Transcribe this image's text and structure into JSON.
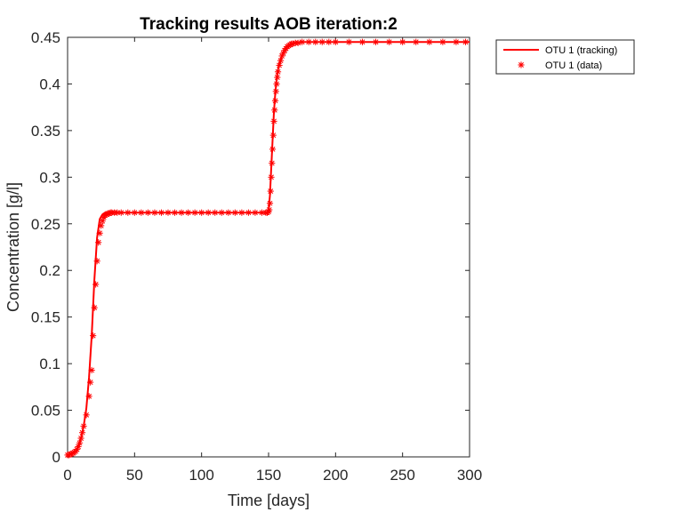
{
  "chart_data": {
    "type": "line",
    "title": "Tracking results AOB iteration:2",
    "xlabel": "Time [days]",
    "ylabel": "Concentration [g/l]",
    "xlim": [
      0,
      300
    ],
    "ylim": [
      0,
      0.45
    ],
    "xticks": [
      0,
      50,
      100,
      150,
      200,
      250,
      300
    ],
    "yticks": [
      0,
      0.05,
      0.1,
      0.15,
      0.2,
      0.25,
      0.3,
      0.35,
      0.4,
      0.45
    ],
    "xtick_labels": [
      "0",
      "50",
      "100",
      "150",
      "200",
      "250",
      "300"
    ],
    "ytick_labels": [
      "0",
      "0.05",
      "0.1",
      "0.15",
      "0.2",
      "0.25",
      "0.3",
      "0.35",
      "0.4",
      "0.45"
    ],
    "grid": false,
    "legend_position": "outside-top-right",
    "series": [
      {
        "name": "OTU 1 (tracking)",
        "style": "line",
        "color": "#ff0000",
        "x": [
          0,
          4,
          6,
          8,
          10,
          12,
          14,
          16,
          18,
          20,
          22,
          24,
          26,
          28,
          30,
          32,
          40,
          60,
          100,
          140,
          149,
          150,
          151,
          152,
          153,
          154,
          155,
          156,
          157,
          158,
          160,
          162,
          164,
          166,
          168,
          170,
          175,
          180,
          200,
          250,
          300
        ],
        "y": [
          0.002,
          0.004,
          0.006,
          0.011,
          0.02,
          0.033,
          0.052,
          0.085,
          0.13,
          0.19,
          0.235,
          0.255,
          0.26,
          0.262,
          0.262,
          0.262,
          0.262,
          0.262,
          0.262,
          0.262,
          0.262,
          0.265,
          0.28,
          0.31,
          0.34,
          0.37,
          0.39,
          0.405,
          0.415,
          0.422,
          0.43,
          0.436,
          0.44,
          0.442,
          0.443,
          0.444,
          0.445,
          0.445,
          0.445,
          0.445,
          0.445
        ]
      },
      {
        "name": "OTU 1 (data)",
        "style": "markers",
        "marker": "asterisk",
        "color": "#ff0000",
        "x": [
          0,
          1,
          2,
          3,
          4,
          5,
          6,
          7,
          8,
          9,
          10,
          11,
          12,
          14,
          16,
          17,
          18,
          19,
          20,
          21,
          22,
          23,
          24,
          25,
          26,
          27,
          28,
          29,
          30,
          31,
          32,
          33,
          35,
          37,
          40,
          45,
          50,
          55,
          60,
          65,
          70,
          75,
          80,
          85,
          90,
          95,
          100,
          105,
          110,
          115,
          120,
          125,
          130,
          135,
          140,
          145,
          148,
          149,
          150,
          150.5,
          151,
          151.5,
          152,
          152.5,
          153,
          153.5,
          154,
          154.5,
          155,
          155.5,
          156,
          156.5,
          157,
          158,
          159,
          160,
          161,
          162,
          163,
          164,
          165,
          166,
          167,
          168,
          170,
          172,
          175,
          180,
          185,
          190,
          195,
          200,
          210,
          220,
          230,
          240,
          250,
          260,
          270,
          280,
          290,
          297
        ],
        "y": [
          0.002,
          0.002,
          0.003,
          0.003,
          0.004,
          0.005,
          0.006,
          0.008,
          0.011,
          0.015,
          0.02,
          0.026,
          0.033,
          0.045,
          0.065,
          0.08,
          0.093,
          0.13,
          0.16,
          0.185,
          0.21,
          0.23,
          0.24,
          0.248,
          0.253,
          0.257,
          0.259,
          0.26,
          0.261,
          0.261,
          0.262,
          0.262,
          0.262,
          0.262,
          0.262,
          0.262,
          0.262,
          0.262,
          0.262,
          0.262,
          0.262,
          0.262,
          0.262,
          0.262,
          0.262,
          0.262,
          0.262,
          0.262,
          0.262,
          0.262,
          0.262,
          0.262,
          0.262,
          0.262,
          0.262,
          0.262,
          0.262,
          0.262,
          0.263,
          0.265,
          0.272,
          0.285,
          0.3,
          0.315,
          0.33,
          0.345,
          0.36,
          0.372,
          0.382,
          0.392,
          0.4,
          0.407,
          0.413,
          0.42,
          0.425,
          0.43,
          0.433,
          0.436,
          0.438,
          0.44,
          0.441,
          0.442,
          0.443,
          0.443,
          0.444,
          0.444,
          0.445,
          0.445,
          0.445,
          0.445,
          0.445,
          0.445,
          0.445,
          0.445,
          0.445,
          0.445,
          0.445,
          0.445,
          0.445,
          0.445,
          0.445,
          0.445
        ]
      }
    ]
  }
}
